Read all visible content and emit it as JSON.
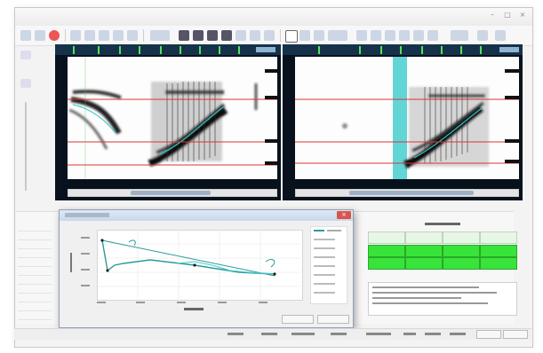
{
  "colors": {
    "spectrogram_bg": "#fdfdfd",
    "panel_dark": "#07121e",
    "ruler_blue": "#15324a",
    "highlight_green": "#38e43a",
    "selection_cyan": "#2ec7c9",
    "guide_red": "#d33"
  },
  "icons": [
    "save-icon",
    "record-icon",
    "play-icon",
    "stop-icon",
    "zoom-in-icon",
    "zoom-out-icon",
    "select-icon",
    "close-icon"
  ]
}
